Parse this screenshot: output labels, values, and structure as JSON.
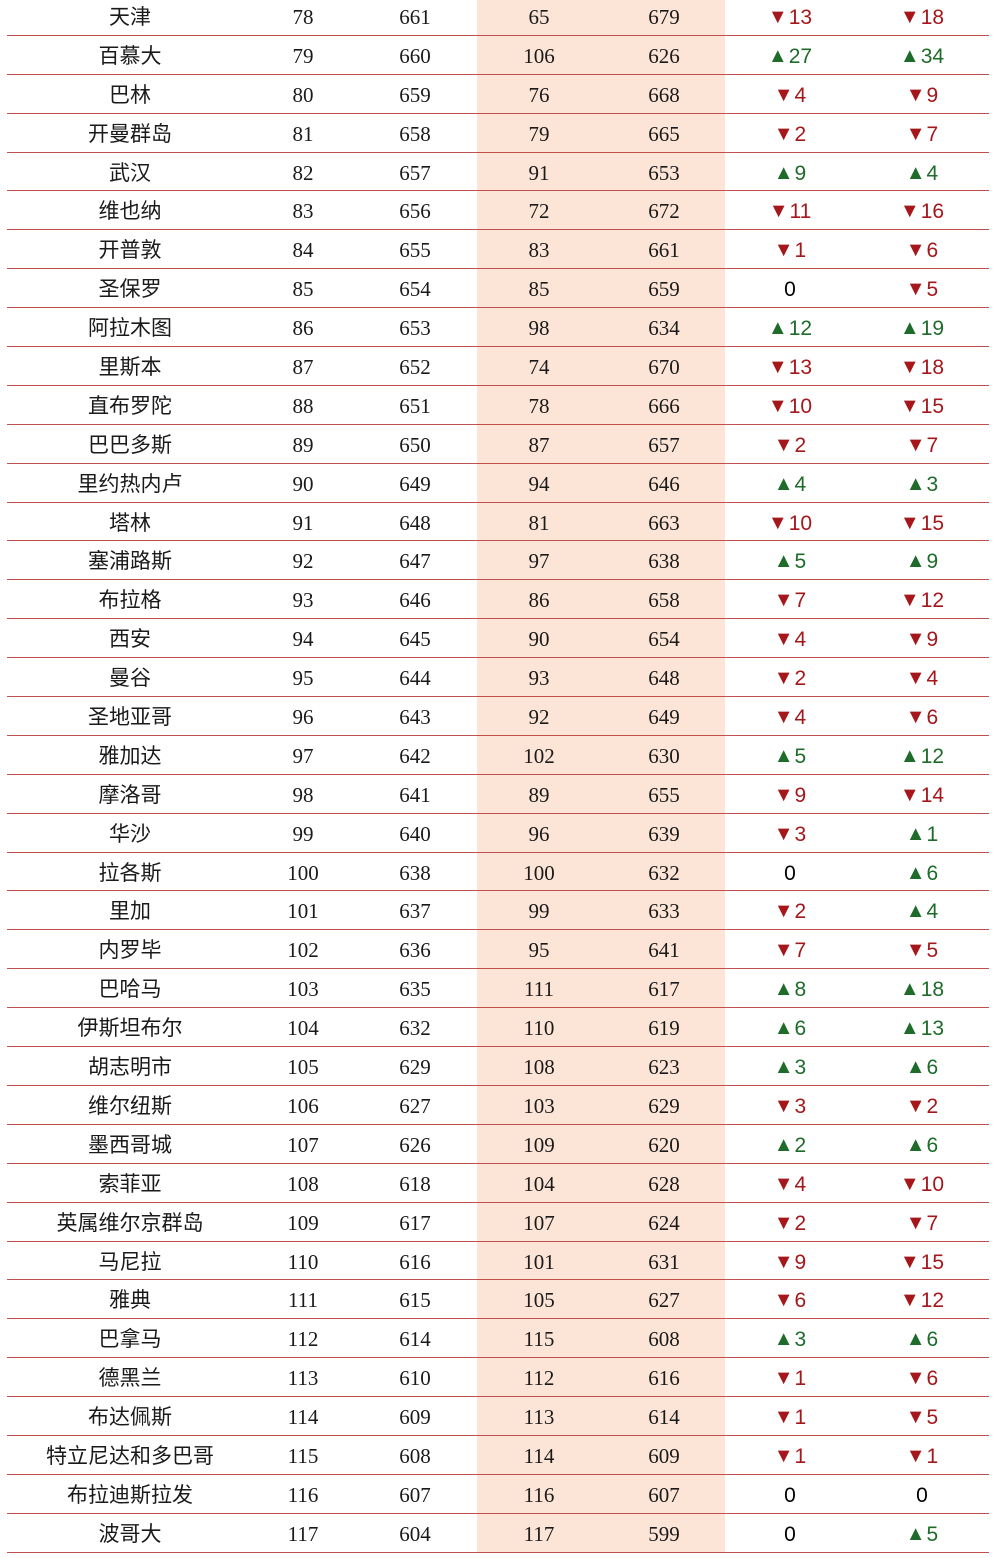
{
  "rows": [
    {
      "city": "天津",
      "c1": "78",
      "c2": "661",
      "c3": "65",
      "c4": "679",
      "d1": "down",
      "v1": "13",
      "d2": "down",
      "v2": "18"
    },
    {
      "city": "百慕大",
      "c1": "79",
      "c2": "660",
      "c3": "106",
      "c4": "626",
      "d1": "up",
      "v1": "27",
      "d2": "up",
      "v2": "34"
    },
    {
      "city": "巴林",
      "c1": "80",
      "c2": "659",
      "c3": "76",
      "c4": "668",
      "d1": "down",
      "v1": "4",
      "d2": "down",
      "v2": "9"
    },
    {
      "city": "开曼群岛",
      "c1": "81",
      "c2": "658",
      "c3": "79",
      "c4": "665",
      "d1": "down",
      "v1": "2",
      "d2": "down",
      "v2": "7"
    },
    {
      "city": "武汉",
      "c1": "82",
      "c2": "657",
      "c3": "91",
      "c4": "653",
      "d1": "up",
      "v1": "9",
      "d2": "up",
      "v2": "4"
    },
    {
      "city": "维也纳",
      "c1": "83",
      "c2": "656",
      "c3": "72",
      "c4": "672",
      "d1": "down",
      "v1": "11",
      "d2": "down",
      "v2": "16"
    },
    {
      "city": "开普敦",
      "c1": "84",
      "c2": "655",
      "c3": "83",
      "c4": "661",
      "d1": "down",
      "v1": "1",
      "d2": "down",
      "v2": "6"
    },
    {
      "city": "圣保罗",
      "c1": "85",
      "c2": "654",
      "c3": "85",
      "c4": "659",
      "d1": "zero",
      "v1": "0",
      "d2": "down",
      "v2": "5"
    },
    {
      "city": "阿拉木图",
      "c1": "86",
      "c2": "653",
      "c3": "98",
      "c4": "634",
      "d1": "up",
      "v1": "12",
      "d2": "up",
      "v2": "19"
    },
    {
      "city": "里斯本",
      "c1": "87",
      "c2": "652",
      "c3": "74",
      "c4": "670",
      "d1": "down",
      "v1": "13",
      "d2": "down",
      "v2": "18"
    },
    {
      "city": "直布罗陀",
      "c1": "88",
      "c2": "651",
      "c3": "78",
      "c4": "666",
      "d1": "down",
      "v1": "10",
      "d2": "down",
      "v2": "15"
    },
    {
      "city": "巴巴多斯",
      "c1": "89",
      "c2": "650",
      "c3": "87",
      "c4": "657",
      "d1": "down",
      "v1": "2",
      "d2": "down",
      "v2": "7"
    },
    {
      "city": "里约热内卢",
      "c1": "90",
      "c2": "649",
      "c3": "94",
      "c4": "646",
      "d1": "up",
      "v1": "4",
      "d2": "up",
      "v2": "3"
    },
    {
      "city": "塔林",
      "c1": "91",
      "c2": "648",
      "c3": "81",
      "c4": "663",
      "d1": "down",
      "v1": "10",
      "d2": "down",
      "v2": "15"
    },
    {
      "city": "塞浦路斯",
      "c1": "92",
      "c2": "647",
      "c3": "97",
      "c4": "638",
      "d1": "up",
      "v1": "5",
      "d2": "up",
      "v2": "9"
    },
    {
      "city": "布拉格",
      "c1": "93",
      "c2": "646",
      "c3": "86",
      "c4": "658",
      "d1": "down",
      "v1": "7",
      "d2": "down",
      "v2": "12"
    },
    {
      "city": "西安",
      "c1": "94",
      "c2": "645",
      "c3": "90",
      "c4": "654",
      "d1": "down",
      "v1": "4",
      "d2": "down",
      "v2": "9"
    },
    {
      "city": "曼谷",
      "c1": "95",
      "c2": "644",
      "c3": "93",
      "c4": "648",
      "d1": "down",
      "v1": "2",
      "d2": "down",
      "v2": "4"
    },
    {
      "city": "圣地亚哥",
      "c1": "96",
      "c2": "643",
      "c3": "92",
      "c4": "649",
      "d1": "down",
      "v1": "4",
      "d2": "down",
      "v2": "6"
    },
    {
      "city": "雅加达",
      "c1": "97",
      "c2": "642",
      "c3": "102",
      "c4": "630",
      "d1": "up",
      "v1": "5",
      "d2": "up",
      "v2": "12"
    },
    {
      "city": "摩洛哥",
      "c1": "98",
      "c2": "641",
      "c3": "89",
      "c4": "655",
      "d1": "down",
      "v1": "9",
      "d2": "down",
      "v2": "14"
    },
    {
      "city": "华沙",
      "c1": "99",
      "c2": "640",
      "c3": "96",
      "c4": "639",
      "d1": "down",
      "v1": "3",
      "d2": "up",
      "v2": "1"
    },
    {
      "city": "拉各斯",
      "c1": "100",
      "c2": "638",
      "c3": "100",
      "c4": "632",
      "d1": "zero",
      "v1": "0",
      "d2": "up",
      "v2": "6"
    },
    {
      "city": "里加",
      "c1": "101",
      "c2": "637",
      "c3": "99",
      "c4": "633",
      "d1": "down",
      "v1": "2",
      "d2": "up",
      "v2": "4"
    },
    {
      "city": "内罗毕",
      "c1": "102",
      "c2": "636",
      "c3": "95",
      "c4": "641",
      "d1": "down",
      "v1": "7",
      "d2": "down",
      "v2": "5"
    },
    {
      "city": "巴哈马",
      "c1": "103",
      "c2": "635",
      "c3": "111",
      "c4": "617",
      "d1": "up",
      "v1": "8",
      "d2": "up",
      "v2": "18"
    },
    {
      "city": "伊斯坦布尔",
      "c1": "104",
      "c2": "632",
      "c3": "110",
      "c4": "619",
      "d1": "up",
      "v1": "6",
      "d2": "up",
      "v2": "13"
    },
    {
      "city": "胡志明市",
      "c1": "105",
      "c2": "629",
      "c3": "108",
      "c4": "623",
      "d1": "up",
      "v1": "3",
      "d2": "up",
      "v2": "6"
    },
    {
      "city": "维尔纽斯",
      "c1": "106",
      "c2": "627",
      "c3": "103",
      "c4": "629",
      "d1": "down",
      "v1": "3",
      "d2": "down",
      "v2": "2"
    },
    {
      "city": "墨西哥城",
      "c1": "107",
      "c2": "626",
      "c3": "109",
      "c4": "620",
      "d1": "up",
      "v1": "2",
      "d2": "up",
      "v2": "6"
    },
    {
      "city": "索菲亚",
      "c1": "108",
      "c2": "618",
      "c3": "104",
      "c4": "628",
      "d1": "down",
      "v1": "4",
      "d2": "down",
      "v2": "10"
    },
    {
      "city": "英属维尔京群岛",
      "c1": "109",
      "c2": "617",
      "c3": "107",
      "c4": "624",
      "d1": "down",
      "v1": "2",
      "d2": "down",
      "v2": "7"
    },
    {
      "city": "马尼拉",
      "c1": "110",
      "c2": "616",
      "c3": "101",
      "c4": "631",
      "d1": "down",
      "v1": "9",
      "d2": "down",
      "v2": "15"
    },
    {
      "city": "雅典",
      "c1": "111",
      "c2": "615",
      "c3": "105",
      "c4": "627",
      "d1": "down",
      "v1": "6",
      "d2": "down",
      "v2": "12"
    },
    {
      "city": "巴拿马",
      "c1": "112",
      "c2": "614",
      "c3": "115",
      "c4": "608",
      "d1": "up",
      "v1": "3",
      "d2": "up",
      "v2": "6"
    },
    {
      "city": "德黑兰",
      "c1": "113",
      "c2": "610",
      "c3": "112",
      "c4": "616",
      "d1": "down",
      "v1": "1",
      "d2": "down",
      "v2": "6"
    },
    {
      "city": "布达佩斯",
      "c1": "114",
      "c2": "609",
      "c3": "113",
      "c4": "614",
      "d1": "down",
      "v1": "1",
      "d2": "down",
      "v2": "5"
    },
    {
      "city": "特立尼达和多巴哥",
      "c1": "115",
      "c2": "608",
      "c3": "114",
      "c4": "609",
      "d1": "down",
      "v1": "1",
      "d2": "down",
      "v2": "1"
    },
    {
      "city": "布拉迪斯拉发",
      "c1": "116",
      "c2": "607",
      "c3": "116",
      "c4": "607",
      "d1": "zero",
      "v1": "0",
      "d2": "zero",
      "v2": "0"
    },
    {
      "city": "波哥大",
      "c1": "117",
      "c2": "604",
      "c3": "117",
      "c4": "599",
      "d1": "zero",
      "v1": "0",
      "d2": "up",
      "v2": "5"
    }
  ],
  "colors": {
    "up": "#1e6b2a",
    "down": "#a5171b",
    "shade": "#fce4d6",
    "rule": "#c0504d"
  },
  "icons": {
    "up": "triangle-up-icon",
    "down": "triangle-down-icon"
  }
}
